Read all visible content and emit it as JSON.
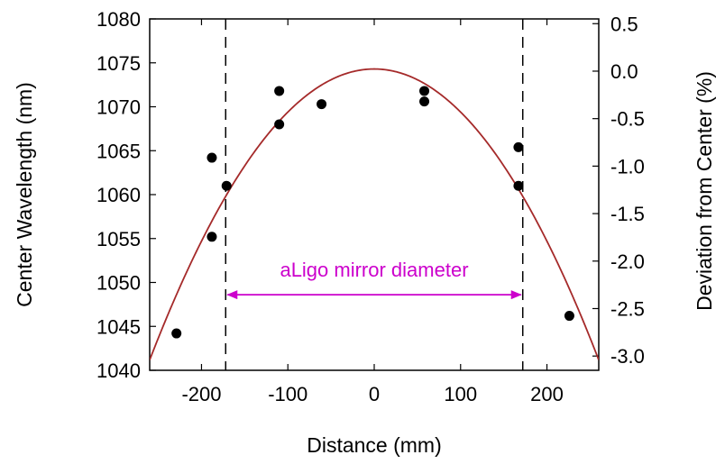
{
  "chart_data": {
    "type": "scatter",
    "xlabel": "Distance (mm)",
    "ylabel": "Center Wavelength (nm)",
    "y2label": "Deviation from Center (%)",
    "xlim": [
      -260,
      260
    ],
    "ylim": [
      1040,
      1080
    ],
    "y2lim": [
      -3.15,
      0.55
    ],
    "x_ticks": [
      -200,
      -100,
      0,
      100,
      200
    ],
    "x_tick_labels": [
      "-200",
      "-100",
      "0",
      "100",
      "200"
    ],
    "y_ticks": [
      1040,
      1045,
      1050,
      1055,
      1060,
      1065,
      1070,
      1075,
      1080
    ],
    "y_tick_labels": [
      "1040",
      "1045",
      "1050",
      "1055",
      "1060",
      "1065",
      "1070",
      "1075",
      "1080"
    ],
    "y2_ticks": [
      -3.0,
      -2.5,
      -2.0,
      -1.5,
      -1.0,
      -0.5,
      0.0,
      0.5
    ],
    "y2_tick_labels": [
      "-3.0",
      "-2.5",
      "-2.0",
      "-1.5",
      "-1.0",
      "-0.5",
      "0.0",
      "0.5"
    ],
    "grid": false,
    "points": [
      {
        "x": -229,
        "y": 1044.2
      },
      {
        "x": -188,
        "y": 1064.2
      },
      {
        "x": -188,
        "y": 1055.2
      },
      {
        "x": -171,
        "y": 1061.0
      },
      {
        "x": -110,
        "y": 1071.8
      },
      {
        "x": -110,
        "y": 1068.0
      },
      {
        "x": -61,
        "y": 1070.3
      },
      {
        "x": 58,
        "y": 1071.8
      },
      {
        "x": 58,
        "y": 1070.6
      },
      {
        "x": 167,
        "y": 1065.4
      },
      {
        "x": 167,
        "y": 1061.0
      },
      {
        "x": 226,
        "y": 1046.2
      }
    ],
    "fit_curve": {
      "model": "parabola",
      "vertex_x": 0,
      "peak_y": 1074.3,
      "curvature": 0.00049,
      "color": "#a52a2a"
    },
    "vlines": [
      -172,
      172
    ],
    "annotation": {
      "text": "aLigo mirror diameter",
      "x_from": -172,
      "x_to": 172,
      "y": 1048.6,
      "color": "#cc00cc"
    },
    "point_color": "#000000"
  }
}
